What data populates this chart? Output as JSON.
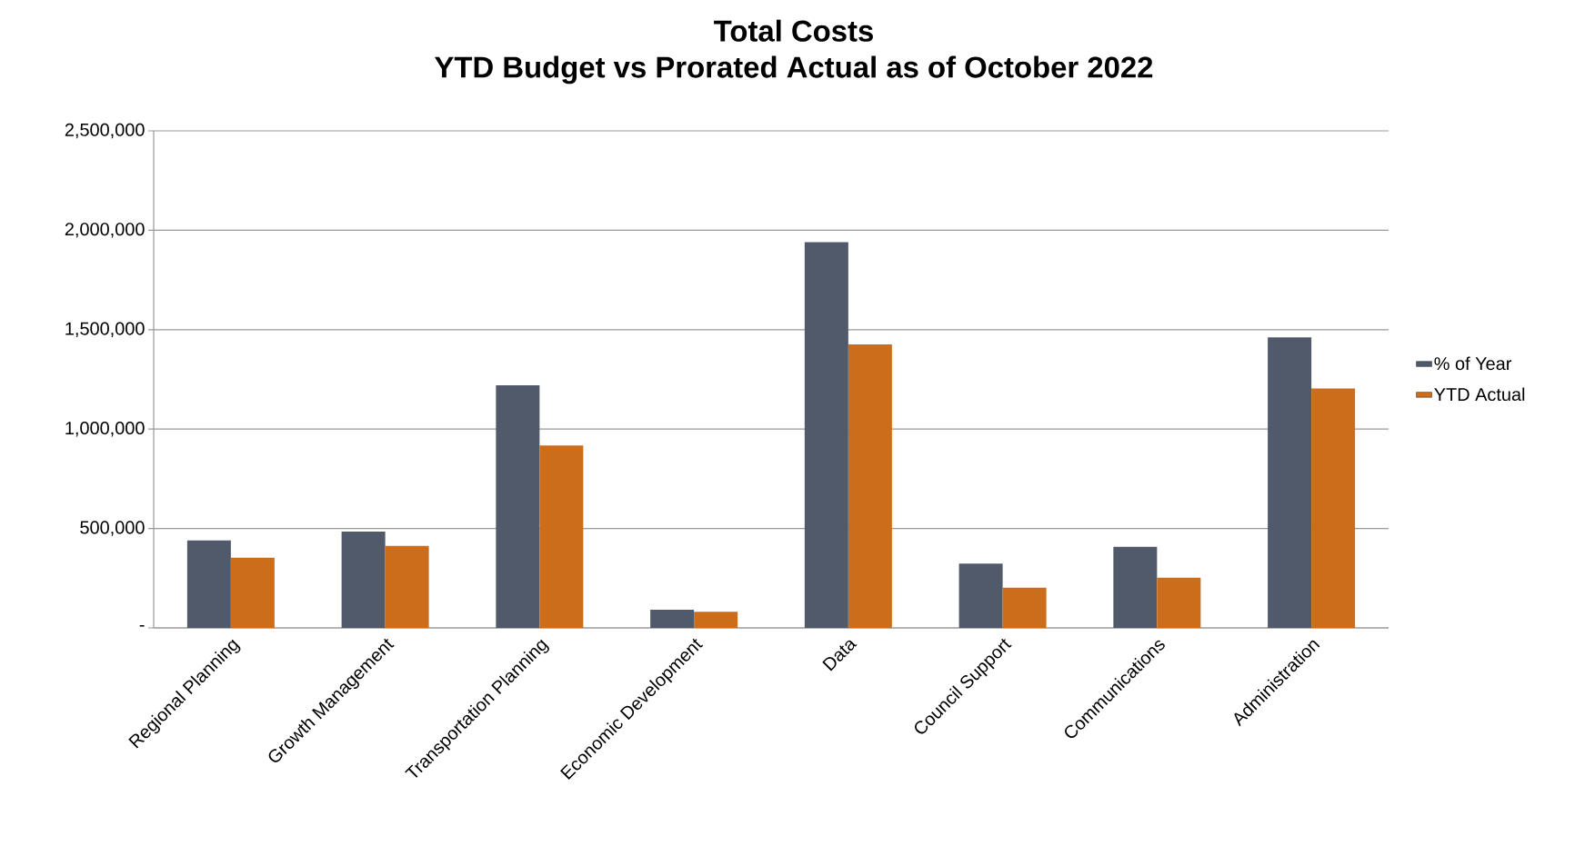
{
  "chart_data": {
    "type": "bar",
    "title": "Total Costs",
    "subtitle": "YTD Budget vs Prorated Actual as of October 2022",
    "categories": [
      "Regional Planning",
      "Growth Management",
      "Transportation Planning",
      "Economic Development",
      "Data",
      "Council Support",
      "Communications",
      "Administration"
    ],
    "series": [
      {
        "name": "% of Year",
        "color": "#515a6b",
        "values": [
          440000,
          484000,
          1220000,
          91000,
          1940000,
          323000,
          408000,
          1461000
        ]
      },
      {
        "name": "YTD Actual",
        "color": "#cc6d1c",
        "values": [
          353000,
          413000,
          917000,
          81000,
          1426000,
          202000,
          252000,
          1204000
        ]
      }
    ],
    "ylim": [
      0,
      2500000
    ],
    "yticks": [
      {
        "value": 0,
        "label": "-"
      },
      {
        "value": 500000,
        "label": "500,000"
      },
      {
        "value": 1000000,
        "label": "1,000,000"
      },
      {
        "value": 1500000,
        "label": "1,500,000"
      },
      {
        "value": 2000000,
        "label": "2,000,000"
      },
      {
        "value": 2500000,
        "label": "2,500,000"
      }
    ],
    "grid": "y",
    "legend": "right"
  }
}
